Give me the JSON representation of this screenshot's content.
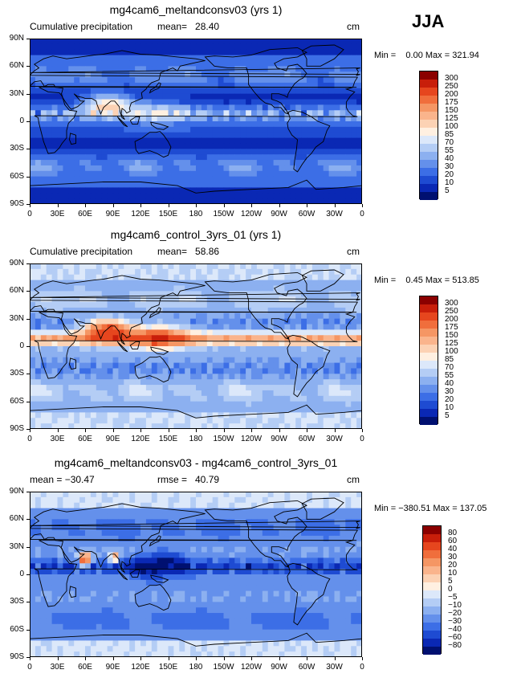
{
  "season": "JJA",
  "panels": [
    {
      "title": "mg4cam6_meltandconsv03 (yrs 1)",
      "left_label": "Cumulative precipitation",
      "center_label": "mean=   28.40",
      "right_label": "cm",
      "minmax": "Min =    0.00 Max = 321.94",
      "cbar_labels": [
        "300",
        "250",
        "200",
        "175",
        "150",
        "125",
        "100",
        "85",
        "70",
        "55",
        "40",
        "30",
        "20",
        "10",
        "5"
      ],
      "cbar_colors": [
        "#8b0000",
        "#c81e0a",
        "#e6461e",
        "#f06e3c",
        "#f59664",
        "#fab48c",
        "#fcd2b4",
        "#fff0e1",
        "#dce8fa",
        "#b4cdf5",
        "#8cb0f0",
        "#6490eb",
        "#3c6ee6",
        "#1e4bd2",
        "#0a28b4",
        "#001070"
      ],
      "field": "melt"
    },
    {
      "title": "mg4cam6_control_3yrs_01 (yrs 1)",
      "left_label": "Cumulative precipitation",
      "center_label": "mean=   58.86",
      "right_label": "cm",
      "minmax": "Min =    0.45 Max = 513.85",
      "cbar_labels": [
        "300",
        "250",
        "200",
        "175",
        "150",
        "125",
        "100",
        "85",
        "70",
        "55",
        "40",
        "30",
        "20",
        "10",
        "5"
      ],
      "cbar_colors": [
        "#8b0000",
        "#c81e0a",
        "#e6461e",
        "#f06e3c",
        "#f59664",
        "#fab48c",
        "#fcd2b4",
        "#fff0e1",
        "#dce8fa",
        "#b4cdf5",
        "#8cb0f0",
        "#6490eb",
        "#3c6ee6",
        "#1e4bd2",
        "#0a28b4",
        "#001070"
      ],
      "field": "control"
    },
    {
      "title": "mg4cam6_meltandconsv03 - mg4cam6_control_3yrs_01",
      "left_label": "mean = −30.47",
      "center_label": "rmse =   40.79",
      "right_label": "cm",
      "minmax": "Min = −380.51 Max = 137.05",
      "cbar_labels": [
        "80",
        "60",
        "40",
        "30",
        "20",
        "10",
        "5",
        "0",
        "−5",
        "−10",
        "−20",
        "−30",
        "−40",
        "−60",
        "−80"
      ],
      "cbar_colors": [
        "#8b0000",
        "#c81e0a",
        "#e6461e",
        "#f06e3c",
        "#f59664",
        "#fab48c",
        "#fcd2b4",
        "#fff0e1",
        "#dce8fa",
        "#b4cdf5",
        "#8cb0f0",
        "#6490eb",
        "#3c6ee6",
        "#1e4bd2",
        "#0a28b4",
        "#001070"
      ],
      "field": "diff"
    }
  ],
  "lat_labels": [
    "90N",
    "60N",
    "30N",
    "0",
    "30S",
    "60S",
    "90S"
  ],
  "lon_labels": [
    "0",
    "30E",
    "60E",
    "90E",
    "120E",
    "150E",
    "180",
    "150W",
    "120W",
    "90W",
    "60W",
    "30W",
    "0"
  ]
}
